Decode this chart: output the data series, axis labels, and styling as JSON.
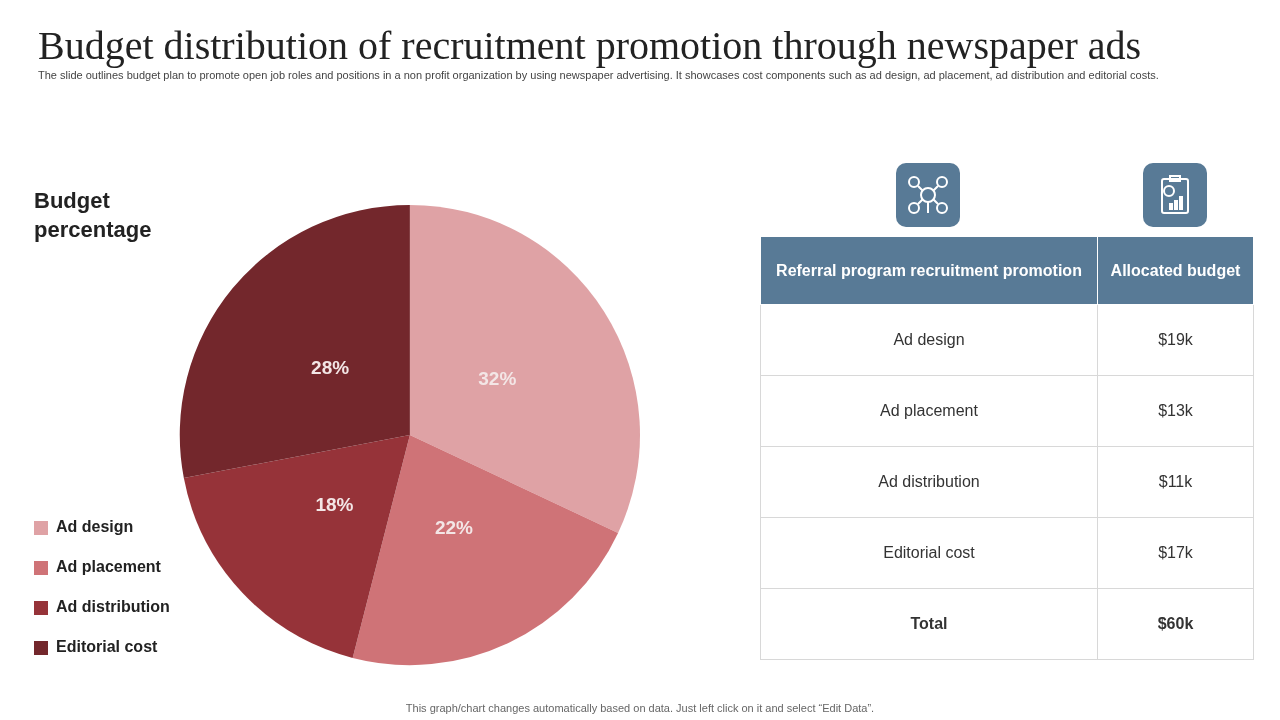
{
  "chart_data": [
    {
      "type": "pie",
      "title": "Budget distribution of recruitment promotion through newspaper ads",
      "subtitle": "The slide outlines budget plan to promote open job roles and positions in a non profit organization by using newspaper advertising. It showcases cost components such as ad design, ad placement, ad distribution and editorial costs.",
      "legend_title": "Budget percentage",
      "categories": [
        "Ad design",
        "Ad placement",
        "Ad distribution",
        "Editorial cost"
      ],
      "values": [
        32,
        22,
        18,
        28
      ],
      "value_labels": [
        "32%",
        "22%",
        "18%",
        "28%"
      ],
      "colors": [
        "#dfa2a5",
        "#cf7377",
        "#963339",
        "#73272c"
      ],
      "legend": "left",
      "annotations": [
        "This graph/chart changes automatically based on data. Just left click on it and select “Edit Data”."
      ]
    },
    {
      "type": "other",
      "xlabel": "Referral program recruitment promotion",
      "ylabel": "Allocated budget",
      "categories": [
        "Ad design",
        "Ad placement",
        "Ad distribution",
        "Editorial cost",
        "Total"
      ],
      "value_labels": [
        "$19k",
        "$13k",
        "$11k",
        "$17k",
        "$60k"
      ]
    }
  ]
}
